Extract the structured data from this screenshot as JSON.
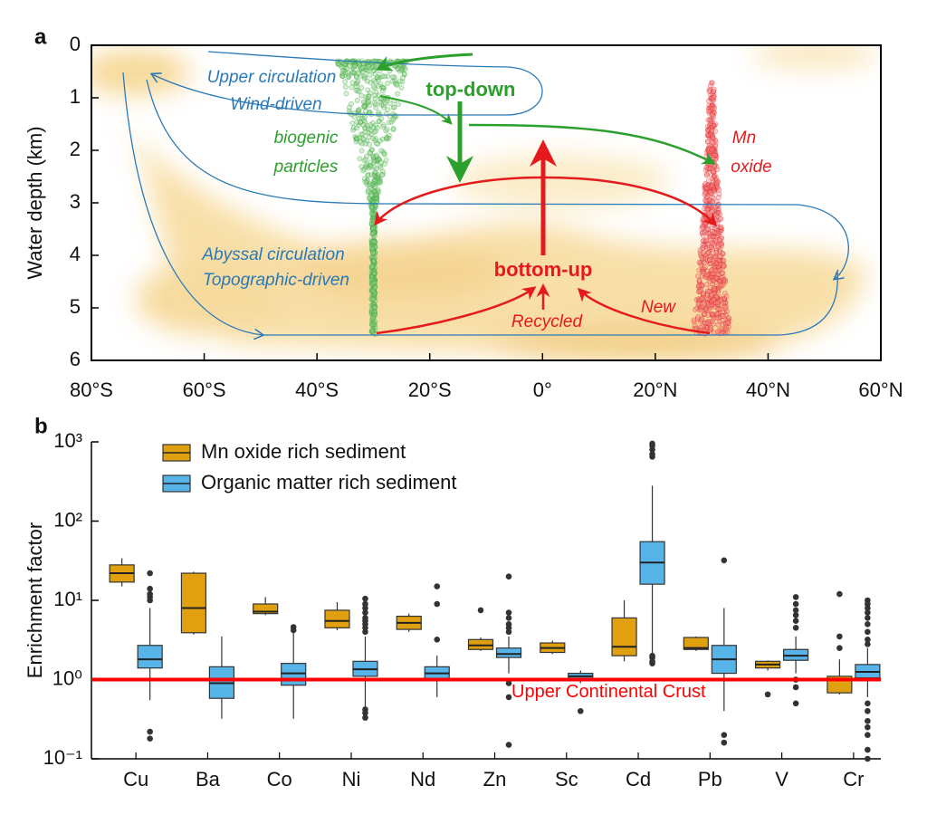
{
  "chart_data": [
    {
      "type": "diagram",
      "panel": "a",
      "ylabel": "Water depth (km)",
      "xlim": [
        -80,
        60
      ],
      "xticks": [
        {
          "value": -80,
          "label": "80°S"
        },
        {
          "value": -60,
          "label": "60°S"
        },
        {
          "value": -40,
          "label": "40°S"
        },
        {
          "value": -20,
          "label": "20°S"
        },
        {
          "value": 0,
          "label": "0°"
        },
        {
          "value": 20,
          "label": "20°N"
        },
        {
          "value": 40,
          "label": "40°N"
        },
        {
          "value": 60,
          "label": "60°N"
        }
      ],
      "ylim": [
        6,
        0
      ],
      "yticks": [
        0,
        1,
        2,
        3,
        4,
        5,
        6
      ],
      "annotations": [
        {
          "text": "Upper circulation",
          "color": "#2a7ab8"
        },
        {
          "text": "Wind-driven",
          "color": "#2a7ab8"
        },
        {
          "text": "top-down",
          "color": "#2ca02c"
        },
        {
          "text": "biogenic",
          "color": "#2ca02c"
        },
        {
          "text": "particles",
          "color": "#2ca02c"
        },
        {
          "text": "Mn",
          "color": "#e41a1c"
        },
        {
          "text": "oxide",
          "color": "#e41a1c"
        },
        {
          "text": "Abyssal circulation",
          "color": "#2a7ab8"
        },
        {
          "text": "Topographic-driven",
          "color": "#2a7ab8"
        },
        {
          "text": "bottom-up",
          "color": "#e41a1c"
        },
        {
          "text": "New",
          "color": "#e41a1c"
        },
        {
          "text": "Recycled",
          "color": "#e41a1c"
        }
      ]
    },
    {
      "type": "box",
      "panel": "b",
      "ylabel": "Enrichment factor",
      "log_scale": true,
      "ylim": [
        0.1,
        1000
      ],
      "yticks": [
        {
          "value": 0.1,
          "label": "10⁻¹"
        },
        {
          "value": 1,
          "label": "10⁰"
        },
        {
          "value": 10,
          "label": "10¹"
        },
        {
          "value": 100,
          "label": "10²"
        },
        {
          "value": 1000,
          "label": "10³"
        }
      ],
      "legend": "upper left",
      "categories": [
        "Cu",
        "Ba",
        "Co",
        "Ni",
        "Nd",
        "Zn",
        "Sc",
        "Cd",
        "Pb",
        "V",
        "Cr"
      ],
      "reference_line": {
        "value": 1,
        "label": "Upper Continental Crust",
        "color": "#ff0000"
      },
      "series": [
        {
          "name": "Mn oxide rich sediment",
          "color": "#e0a010",
          "boxes": [
            {
              "whislo": 15,
              "q1": 17,
              "med": 22,
              "q3": 28,
              "whishi": 34,
              "fliers": []
            },
            {
              "whislo": 3.7,
              "q1": 3.9,
              "med": 8,
              "q3": 22,
              "whishi": 23,
              "fliers": []
            },
            {
              "whislo": 6.5,
              "q1": 6.8,
              "med": 7.2,
              "q3": 9,
              "whishi": 11,
              "fliers": []
            },
            {
              "whislo": 4.2,
              "q1": 4.5,
              "med": 5.5,
              "q3": 7.5,
              "whishi": 9.5,
              "fliers": []
            },
            {
              "whislo": 4,
              "q1": 4.3,
              "med": 5.2,
              "q3": 6.3,
              "whishi": 6.8,
              "fliers": []
            },
            {
              "whislo": 2.3,
              "q1": 2.4,
              "med": 2.7,
              "q3": 3.2,
              "whishi": 3.4,
              "fliers": [
                7.5
              ]
            },
            {
              "whislo": 2.1,
              "q1": 2.2,
              "med": 2.5,
              "q3": 2.9,
              "whishi": 3.1,
              "fliers": []
            },
            {
              "whislo": 1.7,
              "q1": 2,
              "med": 2.6,
              "q3": 6,
              "whishi": 10,
              "fliers": []
            },
            {
              "whislo": 2.3,
              "q1": 2.4,
              "med": 2.5,
              "q3": 3.4,
              "whishi": 3.5,
              "fliers": []
            },
            {
              "whislo": 1.3,
              "q1": 1.4,
              "med": 1.55,
              "q3": 1.7,
              "whishi": 1.75,
              "fliers": [
                0.65
              ]
            },
            {
              "whislo": 0.65,
              "q1": 0.68,
              "med": 1,
              "q3": 1.1,
              "whishi": 1.8,
              "fliers": [
                2.5,
                3.5,
                12
              ]
            }
          ]
        },
        {
          "name": "Organic matter rich sediment",
          "color": "#56b4e9",
          "boxes": [
            {
              "whislo": 0.55,
              "q1": 1.4,
              "med": 1.8,
              "q3": 2.7,
              "whishi": 8,
              "fliers": [
                0.18,
                0.22,
                10,
                11,
                12,
                14,
                22
              ]
            },
            {
              "whislo": 0.32,
              "q1": 0.58,
              "med": 0.9,
              "q3": 1.45,
              "whishi": 3.5,
              "fliers": []
            },
            {
              "whislo": 0.32,
              "q1": 0.85,
              "med": 1.2,
              "q3": 1.6,
              "whishi": 4,
              "fliers": [
                4.2,
                4.6
              ]
            },
            {
              "whislo": 0.45,
              "q1": 1.1,
              "med": 1.35,
              "q3": 1.7,
              "whishi": 3.5,
              "fliers": [
                0.33,
                0.38,
                0.42,
                4,
                4.5,
                5,
                5.5,
                6,
                7,
                8,
                9,
                10.5
              ]
            },
            {
              "whislo": 0.6,
              "q1": 1,
              "med": 1.2,
              "q3": 1.45,
              "whishi": 2,
              "fliers": [
                3.2,
                9,
                15
              ]
            },
            {
              "whislo": 1.2,
              "q1": 1.9,
              "med": 2.1,
              "q3": 2.5,
              "whishi": 3.5,
              "fliers": [
                0.15,
                0.6,
                0.9,
                4,
                4.5,
                5,
                6,
                7,
                20
              ]
            },
            {
              "whislo": 0.9,
              "q1": 1,
              "med": 1.1,
              "q3": 1.2,
              "whishi": 1.3,
              "fliers": [
                0.4
              ]
            },
            {
              "whislo": 1.8,
              "q1": 16,
              "med": 30,
              "q3": 55,
              "whishi": 280,
              "fliers": [
                1.6,
                1.7,
                1.9,
                2,
                650,
                700,
                800,
                900,
                950
              ]
            },
            {
              "whislo": 0.4,
              "q1": 1.2,
              "med": 1.8,
              "q3": 2.7,
              "whishi": 8,
              "fliers": [
                0.16,
                0.2,
                32
              ]
            },
            {
              "whislo": 1.2,
              "q1": 1.75,
              "med": 2,
              "q3": 2.4,
              "whishi": 3.5,
              "fliers": [
                0.5,
                0.8,
                1,
                4.5,
                5.5,
                6.5,
                7.5,
                9,
                11
              ]
            },
            {
              "whislo": 0.6,
              "q1": 1.05,
              "med": 1.25,
              "q3": 1.55,
              "whishi": 2.5,
              "fliers": [
                0.1,
                0.13,
                0.2,
                0.25,
                0.3,
                0.4,
                0.5,
                2.8,
                3.2,
                4,
                5,
                6,
                7,
                8,
                9,
                10
              ]
            }
          ]
        }
      ]
    }
  ]
}
